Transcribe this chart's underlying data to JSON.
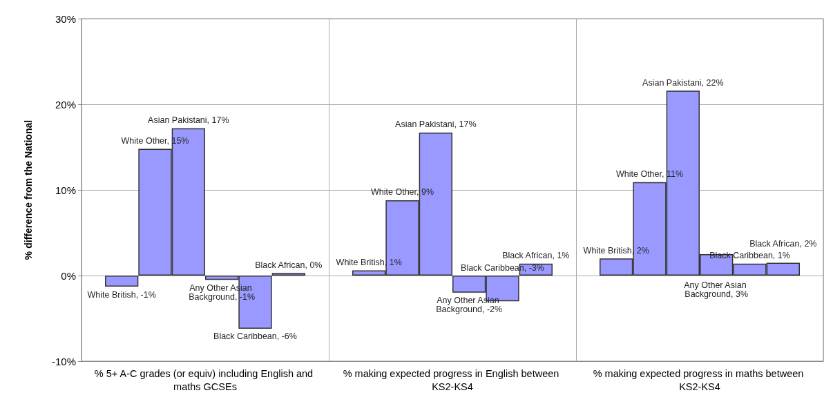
{
  "chart_data": {
    "type": "bar",
    "ylabel": "% difference from the National",
    "categories": [
      "% 5+ A-C grades (or equiv) including English and maths GCSEs",
      "% making expected progress in English between KS2-KS4",
      "% making expected progress in maths between KS2-KS4"
    ],
    "series": [
      {
        "color": "#9999ff",
        "values": [
          -1.3,
          0.6,
          2.0
        ],
        "value_labels": [
          "White British, -1%",
          "White British, 1%",
          "White British, 2%"
        ]
      },
      {
        "color": "#9999ff",
        "values": [
          14.8,
          8.8,
          10.9
        ],
        "value_labels": [
          "White Other, 15%",
          "White Other, 9%",
          "White Other, 11%"
        ]
      },
      {
        "color": "#9999ff",
        "values": [
          17.2,
          16.7,
          21.6
        ],
        "value_labels": [
          "Asian Pakistani, 17%",
          "Asian Pakistani, 17%",
          "Asian Pakistani, 22%"
        ]
      },
      {
        "color": "#9999ff",
        "values": [
          -0.5,
          -2.0,
          2.5
        ],
        "value_labels": [
          "Any Other Asian Background, -1%",
          "Any Other Asian Background, -2%",
          "Any Other Asian Background, 3%"
        ]
      },
      {
        "color": "#9999ff",
        "values": [
          -6.2,
          -3.0,
          1.4
        ],
        "value_labels": [
          "Black Caribbean, -6%",
          "Black Caribbean, -3%",
          "Black Caribbean, 1%"
        ]
      },
      {
        "color": "#9999ff",
        "values": [
          0.3,
          1.4,
          1.5
        ],
        "value_labels": [
          "Black African, 0%",
          "Black African, 1%",
          "Black African, 2%"
        ]
      }
    ],
    "ylim": [
      -10,
      30
    ],
    "yticks": [
      {
        "value": -10,
        "label": "-10%"
      },
      {
        "value": 0,
        "label": "0%"
      },
      {
        "value": 10,
        "label": "10%"
      },
      {
        "value": 20,
        "label": "20%"
      },
      {
        "value": 30,
        "label": "30%"
      }
    ],
    "grid": true
  }
}
